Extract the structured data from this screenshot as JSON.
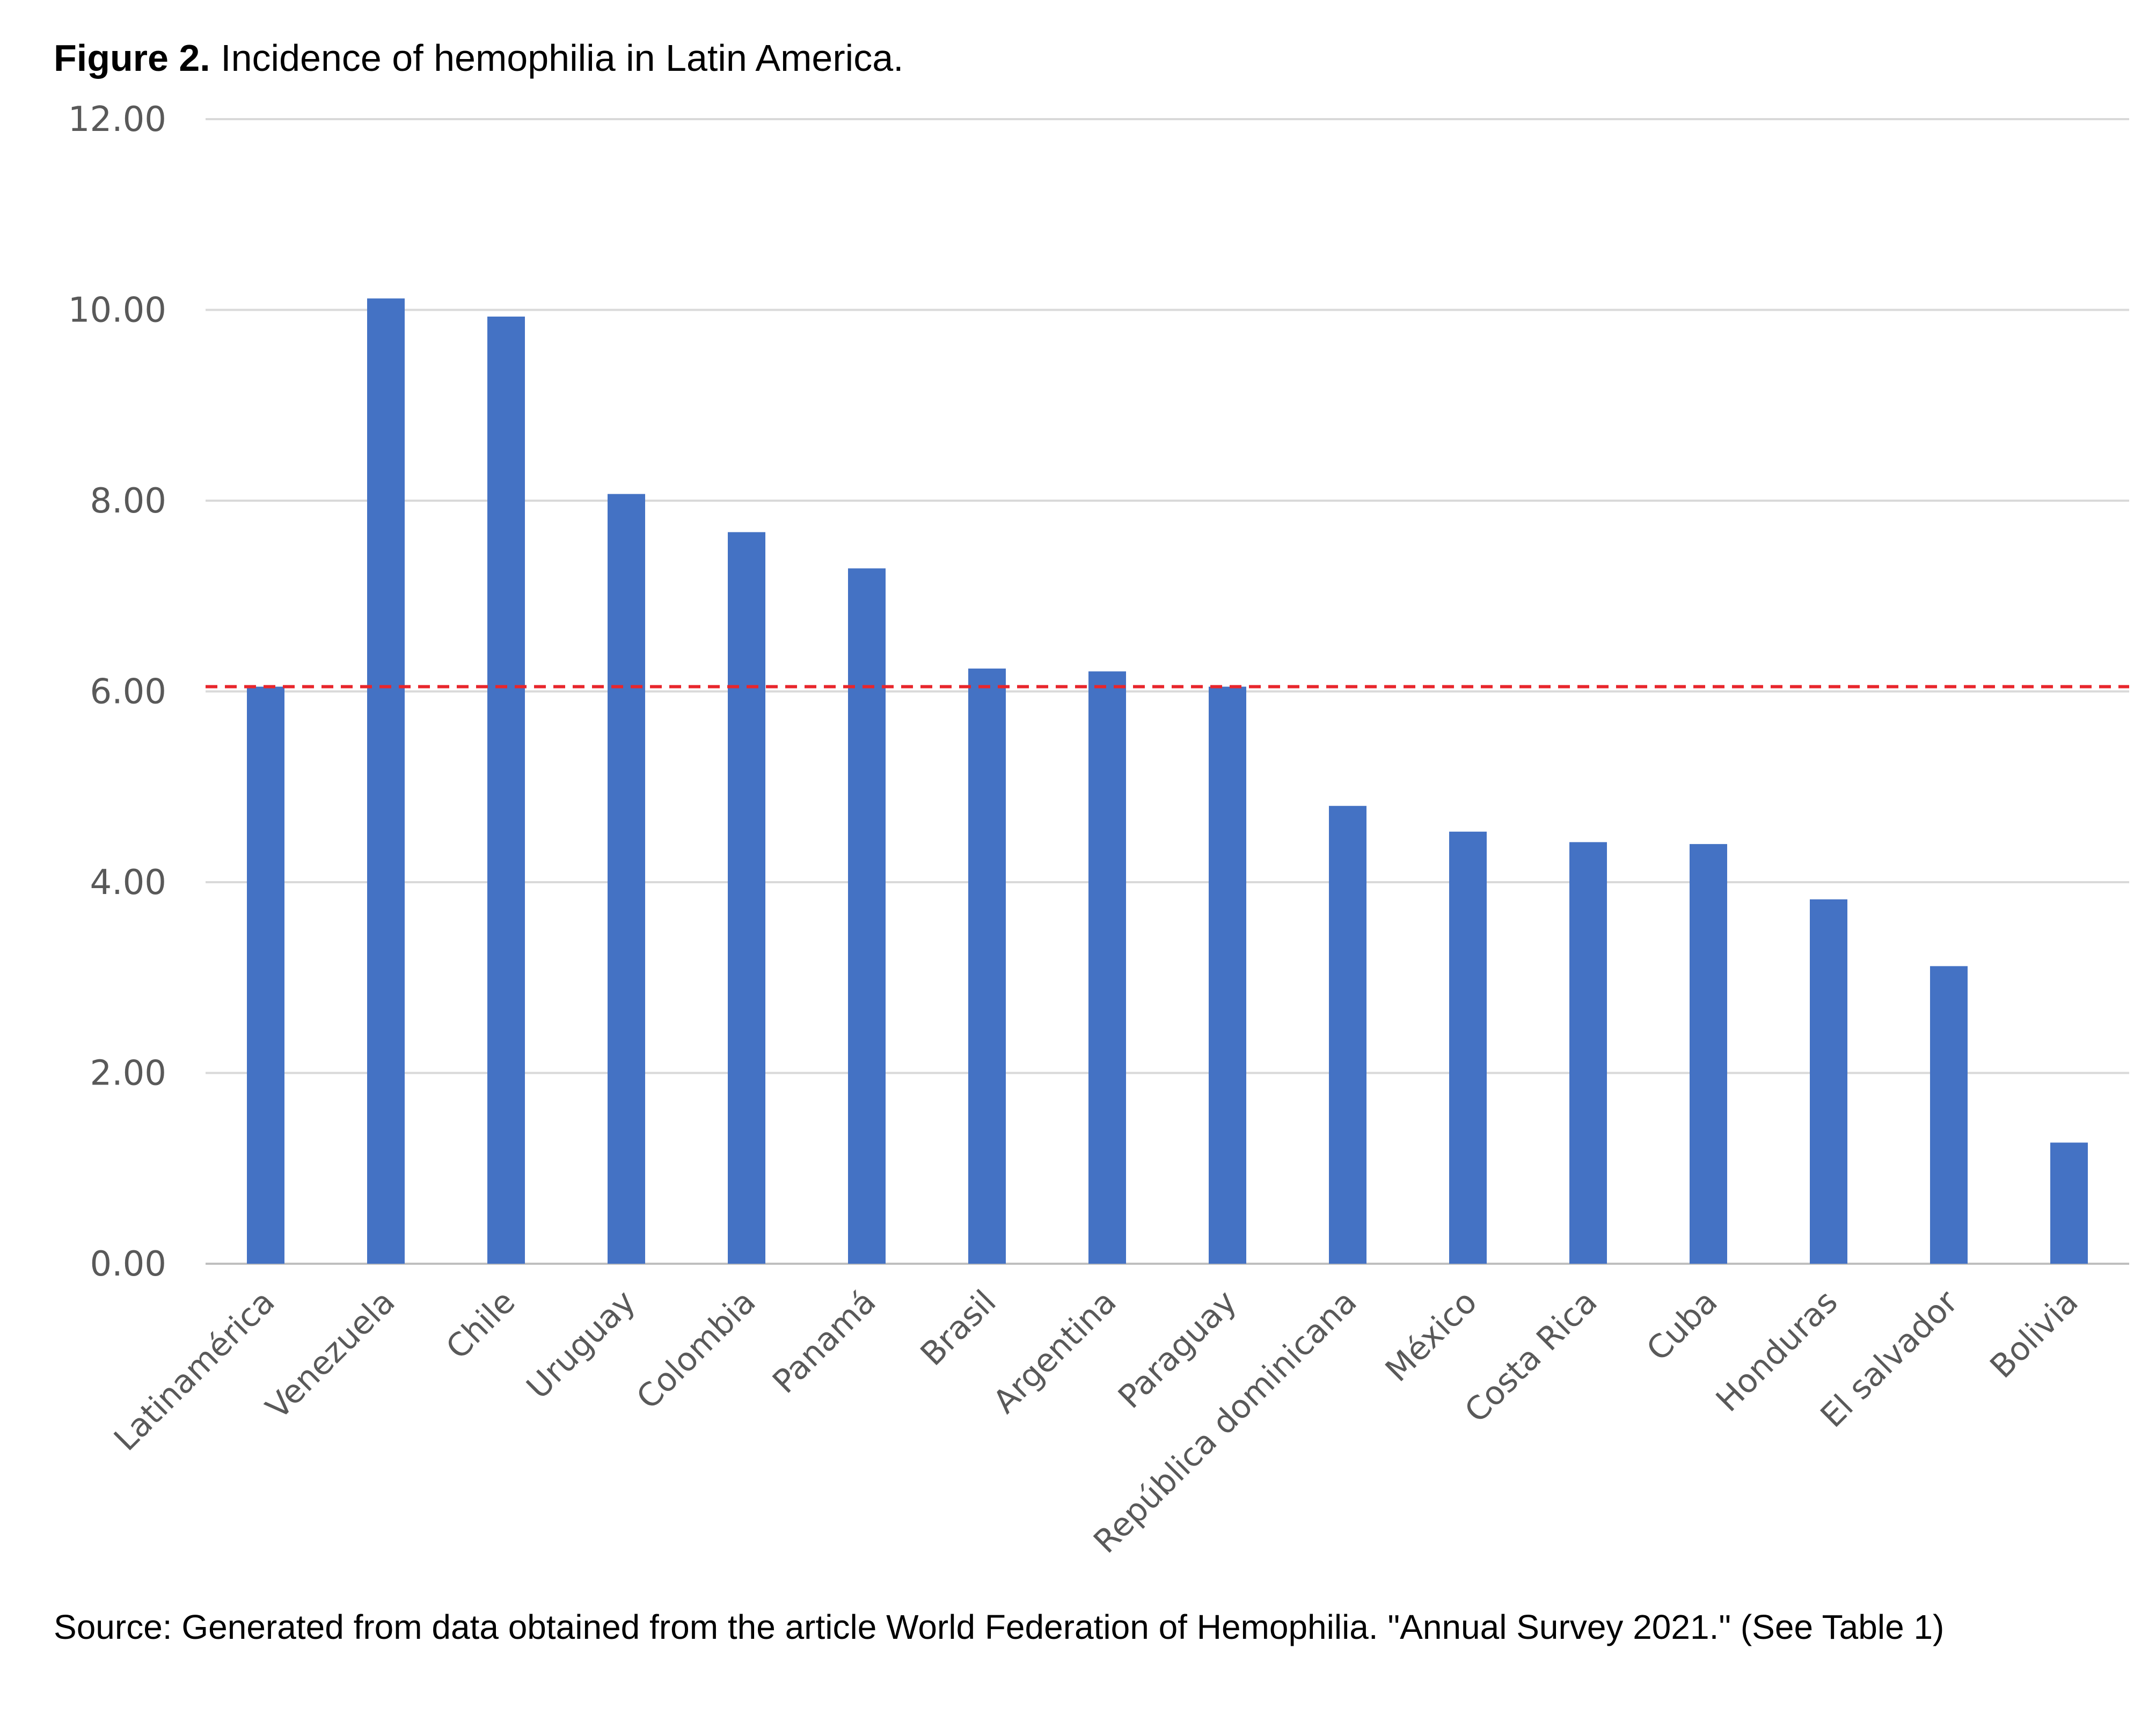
{
  "figure": {
    "label": "Figure 2.",
    "caption": " Incidence of hemophilia in Latin America.",
    "source": "Source: Generated from data obtained from the article World Federation of Hemophilia. \"Annual Survey 2021.\" (See Table 1)"
  },
  "chart_data": {
    "type": "bar",
    "categories": [
      "Latinamérica",
      "Venezuela",
      "Chile",
      "Uruguay",
      "Colombia",
      "Panamá",
      "Brasil",
      "Argentina",
      "Paraguay",
      "República dominicana",
      "México",
      "Costa Rica",
      "Cuba",
      "Honduras",
      "El salvador",
      "Bolivia"
    ],
    "values": [
      6.05,
      10.12,
      9.93,
      8.07,
      7.67,
      7.29,
      6.24,
      6.21,
      6.05,
      4.8,
      4.53,
      4.42,
      4.4,
      3.82,
      3.12,
      1.27
    ],
    "yticks": [
      "0.00",
      "2.00",
      "4.00",
      "6.00",
      "8.00",
      "10.00",
      "12.00"
    ],
    "ylim": [
      0,
      12
    ],
    "reference_line": 6.05,
    "bar_color": "#4472C4",
    "reference_line_color": "#E8262C",
    "grid": true
  }
}
